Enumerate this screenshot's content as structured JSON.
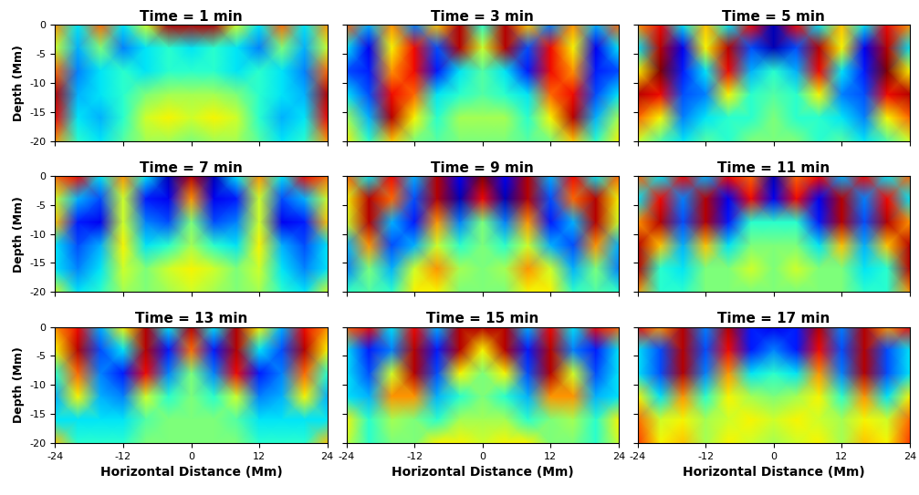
{
  "chart_data": [
    {
      "type": "heatmap",
      "title": "Time = 1 min",
      "y_label": "Depth (Mm)",
      "tick_labels": "y",
      "xlim": [
        -24,
        24
      ],
      "ylim": [
        -20,
        0
      ],
      "xticks": [
        -24,
        -12,
        0,
        12,
        24
      ],
      "yticks": [
        0,
        -5,
        -10,
        -15,
        -20
      ],
      "color": "jet",
      "color_range": [
        -1,
        1
      ],
      "x": [
        -24,
        -20,
        -16,
        -12,
        -8,
        -4,
        0,
        4,
        8,
        12,
        16,
        20,
        24
      ],
      "y": [
        0,
        -4,
        -8,
        -12,
        -16,
        -20
      ],
      "cells": [
        [
          0.5,
          -0.3,
          0.6,
          -0.3,
          0.2,
          0.9,
          0.9,
          0.9,
          0.2,
          -0.3,
          0.6,
          -0.3,
          0.5
        ],
        [
          0.2,
          -0.4,
          0,
          -0.5,
          -0.3,
          -0.2,
          -0.3,
          -0.2,
          -0.3,
          -0.5,
          0,
          -0.4,
          0.2
        ],
        [
          0.6,
          -0.5,
          -0.3,
          -0.2,
          -0.3,
          -0.2,
          -0.2,
          -0.2,
          -0.3,
          -0.2,
          -0.3,
          -0.5,
          0.6
        ],
        [
          0.9,
          -0.4,
          -0.3,
          -0.2,
          0,
          0.1,
          0.1,
          0.1,
          0,
          -0.2,
          -0.3,
          -0.4,
          0.9
        ],
        [
          0.8,
          -0.3,
          -0.4,
          -0.2,
          0.2,
          0.3,
          0.2,
          0.3,
          0.2,
          -0.2,
          -0.4,
          -0.3,
          0.8
        ],
        [
          0.5,
          -0.2,
          -0.3,
          -0.1,
          0.1,
          0.1,
          0,
          0.1,
          0.1,
          -0.1,
          -0.3,
          -0.2,
          0.5
        ]
      ]
    },
    {
      "type": "heatmap",
      "title": "Time = 3 min",
      "tick_labels": false,
      "xlim": [
        -24,
        24
      ],
      "ylim": [
        -20,
        0
      ],
      "xticks": [
        -24,
        -12,
        0,
        12,
        24
      ],
      "yticks": [
        0,
        -5,
        -10,
        -15,
        -20
      ],
      "color": "jet",
      "color_range": [
        -1,
        1
      ],
      "x": [
        -24,
        -20,
        -16,
        -12,
        -8,
        -4,
        0,
        4,
        8,
        12,
        16,
        20,
        24
      ],
      "y": [
        0,
        -4,
        -8,
        -12,
        -16,
        -20
      ],
      "cells": [
        [
          0.6,
          -0.4,
          0.5,
          -0.5,
          0.4,
          0.9,
          -0.2,
          0.9,
          0.4,
          -0.5,
          0.5,
          -0.4,
          0.6
        ],
        [
          -0.3,
          -0.8,
          0.3,
          0.8,
          -0.6,
          0.9,
          0.2,
          0.9,
          -0.6,
          0.8,
          0.3,
          -0.8,
          -0.3
        ],
        [
          -0.6,
          -0.7,
          0.5,
          0.8,
          -0.7,
          -0.3,
          -0.1,
          -0.3,
          -0.7,
          0.8,
          0.5,
          -0.7,
          -0.6
        ],
        [
          -0.3,
          -0.6,
          0.8,
          0.6,
          -0.3,
          -0.2,
          -0.1,
          -0.2,
          -0.3,
          0.6,
          0.8,
          -0.6,
          -0.3
        ],
        [
          0.1,
          -0.4,
          0.9,
          0.3,
          -0.2,
          0.1,
          0.1,
          0.1,
          -0.2,
          0.3,
          0.9,
          -0.4,
          0.1
        ],
        [
          0.3,
          -0.2,
          0.4,
          0,
          -0.1,
          0,
          0,
          0,
          -0.1,
          0,
          0.4,
          -0.2,
          0.3
        ]
      ]
    },
    {
      "type": "heatmap",
      "title": "Time = 5 min",
      "tick_labels": false,
      "xlim": [
        -24,
        24
      ],
      "ylim": [
        -20,
        0
      ],
      "xticks": [
        -24,
        -12,
        0,
        12,
        24
      ],
      "yticks": [
        0,
        -5,
        -10,
        -15,
        -20
      ],
      "color": "jet",
      "color_range": [
        -1,
        1
      ],
      "x": [
        -24,
        -20,
        -16,
        -12,
        -8,
        -4,
        0,
        4,
        8,
        12,
        16,
        20,
        24
      ],
      "y": [
        0,
        -4,
        -8,
        -12,
        -16,
        -20
      ],
      "cells": [
        [
          0.5,
          0.8,
          -0.3,
          0.4,
          -0.3,
          0.8,
          -0.9,
          0.8,
          -0.3,
          0.4,
          -0.3,
          0.8,
          0.5
        ],
        [
          -0.3,
          0.9,
          -0.8,
          0.3,
          0.9,
          -0.6,
          -0.9,
          -0.6,
          0.9,
          0.3,
          -0.8,
          0.9,
          -0.3
        ],
        [
          0.3,
          1,
          -0.7,
          -0.3,
          0.8,
          -0.4,
          -0.2,
          -0.4,
          0.8,
          -0.3,
          -0.7,
          1,
          0.3
        ],
        [
          0.9,
          0.8,
          -0.6,
          -0.5,
          0.3,
          -0.2,
          -0.1,
          -0.2,
          0.3,
          -0.5,
          -0.6,
          0.8,
          0.9
        ],
        [
          0.6,
          0.3,
          -0.5,
          -0.3,
          -0.2,
          -0.2,
          0,
          -0.2,
          -0.2,
          -0.3,
          -0.5,
          0.3,
          0.6
        ],
        [
          0.2,
          -0.1,
          -0.3,
          -0.1,
          -0.2,
          0,
          0,
          0,
          -0.2,
          -0.1,
          -0.3,
          -0.1,
          0.2
        ]
      ]
    },
    {
      "type": "heatmap",
      "title": "Time = 7 min",
      "y_label": "Depth (Mm)",
      "tick_labels": "y",
      "xlim": [
        -24,
        24
      ],
      "ylim": [
        -20,
        0
      ],
      "xticks": [
        -24,
        -12,
        0,
        12,
        24
      ],
      "yticks": [
        0,
        -5,
        -10,
        -15,
        -20
      ],
      "color": "jet",
      "color_range": [
        -1,
        1
      ],
      "x": [
        -24,
        -20,
        -16,
        -12,
        -8,
        -4,
        0,
        4,
        8,
        12,
        16,
        20,
        24
      ],
      "y": [
        0,
        -4,
        -8,
        -12,
        -16,
        -20
      ],
      "cells": [
        [
          0.6,
          0.8,
          -0.3,
          0.5,
          -0.3,
          -0.9,
          0.9,
          -0.9,
          -0.3,
          0.5,
          -0.3,
          0.8,
          0.6
        ],
        [
          0.2,
          -0.4,
          -0.6,
          0.2,
          -0.7,
          -0.8,
          0.5,
          -0.8,
          -0.7,
          0.2,
          -0.6,
          -0.4,
          0.2
        ],
        [
          0.4,
          -0.7,
          -0.8,
          0.2,
          -0.5,
          -0.6,
          0,
          -0.6,
          -0.5,
          0.2,
          -0.8,
          -0.7,
          0.4
        ],
        [
          -0.3,
          -0.6,
          -0.4,
          0.3,
          -0.3,
          -0.2,
          0.1,
          -0.2,
          -0.3,
          0.3,
          -0.4,
          -0.6,
          -0.3
        ],
        [
          -0.3,
          -0.5,
          -0.3,
          0.2,
          0,
          0.2,
          0.3,
          0.2,
          0,
          0.2,
          -0.3,
          -0.5,
          -0.3
        ],
        [
          0.2,
          -0.3,
          -0.2,
          0.1,
          0,
          0.1,
          0.2,
          0.1,
          0,
          0.1,
          -0.2,
          -0.3,
          0.2
        ]
      ]
    },
    {
      "type": "heatmap",
      "title": "Time = 9 min",
      "tick_labels": false,
      "xlim": [
        -24,
        24
      ],
      "ylim": [
        -20,
        0
      ],
      "xticks": [
        -24,
        -12,
        0,
        12,
        24
      ],
      "yticks": [
        0,
        -5,
        -10,
        -15,
        -20
      ],
      "color": "jet",
      "color_range": [
        -1,
        1
      ],
      "x": [
        -24,
        -20,
        -16,
        -12,
        -8,
        -4,
        0,
        4,
        8,
        12,
        16,
        20,
        24
      ],
      "y": [
        0,
        -4,
        -8,
        -12,
        -16,
        -20
      ],
      "cells": [
        [
          0.6,
          -0.3,
          0.8,
          -0.4,
          0.9,
          -0.8,
          1,
          -0.8,
          0.9,
          -0.4,
          0.8,
          -0.3,
          0.6
        ],
        [
          0.3,
          0.9,
          0.6,
          -0.6,
          0.9,
          -0.9,
          0.8,
          -0.9,
          0.9,
          -0.6,
          0.6,
          0.9,
          0.3
        ],
        [
          0.2,
          0.9,
          -0.4,
          -0.7,
          0.5,
          -0.5,
          0,
          -0.5,
          0.5,
          -0.7,
          -0.4,
          0.9,
          0.2
        ],
        [
          -0.4,
          0.5,
          -0.6,
          -0.4,
          0.2,
          -0.2,
          0,
          -0.2,
          0.2,
          -0.4,
          -0.6,
          0.5,
          -0.4
        ],
        [
          -0.5,
          0,
          -0.4,
          0.2,
          0.5,
          0.1,
          0,
          0.1,
          0.5,
          0.2,
          -0.4,
          0,
          -0.5
        ],
        [
          -0.2,
          -0.1,
          -0.2,
          0.3,
          0.3,
          0,
          0,
          0,
          0.3,
          0.3,
          -0.2,
          -0.1,
          -0.2
        ]
      ]
    },
    {
      "type": "heatmap",
      "title": "Time = 11 min",
      "tick_labels": false,
      "xlim": [
        -24,
        24
      ],
      "ylim": [
        -20,
        0
      ],
      "xticks": [
        -24,
        -12,
        0,
        12,
        24
      ],
      "yticks": [
        0,
        -5,
        -10,
        -15,
        -20
      ],
      "color": "jet",
      "color_range": [
        -1,
        1
      ],
      "x": [
        -24,
        -20,
        -16,
        -12,
        -8,
        -4,
        0,
        4,
        8,
        12,
        16,
        20,
        24
      ],
      "y": [
        0,
        -4,
        -8,
        -12,
        -16,
        -20
      ],
      "cells": [
        [
          0.6,
          -0.3,
          0.8,
          -0.4,
          0.8,
          0.6,
          -0.9,
          0.6,
          0.8,
          -0.4,
          0.8,
          -0.3,
          0.6
        ],
        [
          -0.3,
          0.8,
          -0.5,
          0.9,
          -0.8,
          0.8,
          -0.8,
          0.8,
          -0.8,
          0.9,
          -0.5,
          0.8,
          -0.3
        ],
        [
          0.5,
          0.9,
          -0.6,
          0.9,
          -0.7,
          -0.2,
          -0.2,
          -0.2,
          -0.7,
          0.9,
          -0.6,
          0.9,
          0.5
        ],
        [
          0.9,
          0.4,
          -0.4,
          0.4,
          -0.3,
          0,
          0,
          0,
          -0.3,
          0.4,
          -0.4,
          0.4,
          0.9
        ],
        [
          0.9,
          -0.2,
          -0.3,
          0,
          0,
          0.2,
          0,
          0.2,
          0,
          0,
          -0.3,
          -0.2,
          0.9
        ],
        [
          0.5,
          -0.2,
          -0.2,
          0,
          0,
          0,
          0,
          0,
          0,
          0,
          -0.2,
          -0.2,
          0.5
        ]
      ]
    },
    {
      "type": "heatmap",
      "title": "Time = 13 min",
      "y_label": "Depth (Mm)",
      "x_label": "Horizontal Distance (Mm)",
      "xlim": [
        -24,
        24
      ],
      "ylim": [
        -20,
        0
      ],
      "xticks": [
        -24,
        -12,
        0,
        12,
        24
      ],
      "yticks": [
        0,
        -5,
        -10,
        -15,
        -20
      ],
      "color": "jet",
      "color_range": [
        -1,
        1
      ],
      "x": [
        -24,
        -20,
        -16,
        -12,
        -8,
        -4,
        0,
        4,
        8,
        12,
        16,
        20,
        24
      ],
      "y": [
        0,
        -4,
        -8,
        -12,
        -16,
        -20
      ],
      "cells": [
        [
          0.5,
          0.8,
          -0.4,
          0.3,
          0.9,
          -0.3,
          0.9,
          -0.3,
          0.9,
          0.3,
          -0.4,
          0.8,
          0.5
        ],
        [
          0.3,
          0.9,
          -0.6,
          -0.3,
          0.9,
          -0.7,
          0.6,
          -0.7,
          0.9,
          -0.3,
          -0.6,
          0.9,
          0.3
        ],
        [
          -0.2,
          0.6,
          -0.5,
          -0.7,
          0.8,
          -0.5,
          0,
          -0.5,
          0.8,
          -0.7,
          -0.5,
          0.6,
          -0.2
        ],
        [
          -0.4,
          0.3,
          -0.4,
          -0.5,
          0.2,
          -0.2,
          0,
          -0.2,
          0.2,
          -0.5,
          -0.4,
          0.3,
          -0.4
        ],
        [
          -0.3,
          -0.3,
          -0.3,
          -0.3,
          -0.1,
          0,
          0,
          0,
          -0.1,
          -0.3,
          -0.3,
          -0.3,
          -0.3
        ],
        [
          0.4,
          -0.2,
          -0.2,
          -0.2,
          0,
          0,
          0,
          0,
          0,
          -0.2,
          -0.2,
          -0.2,
          0.4
        ]
      ]
    },
    {
      "type": "heatmap",
      "title": "Time = 15 min",
      "x_label": "Horizontal Distance (Mm)",
      "tick_labels": "x",
      "xlim": [
        -24,
        24
      ],
      "ylim": [
        -20,
        0
      ],
      "xticks": [
        -24,
        -12,
        0,
        12,
        24
      ],
      "yticks": [
        0,
        -5,
        -10,
        -15,
        -20
      ],
      "color": "jet",
      "color_range": [
        -1,
        1
      ],
      "x": [
        -24,
        -20,
        -16,
        -12,
        -8,
        -4,
        0,
        4,
        8,
        12,
        16,
        20,
        24
      ],
      "y": [
        0,
        -4,
        -8,
        -12,
        -16,
        -20
      ],
      "cells": [
        [
          0.6,
          0.8,
          -0.3,
          0.8,
          -0.4,
          0.9,
          0.9,
          0.9,
          -0.4,
          0.8,
          -0.3,
          0.8,
          0.6
        ],
        [
          -0.3,
          -0.7,
          -0.5,
          0.9,
          -0.7,
          0.9,
          0.3,
          0.9,
          -0.7,
          0.9,
          -0.5,
          -0.7,
          -0.3
        ],
        [
          -0.3,
          -0.6,
          0.2,
          0.9,
          -0.6,
          0.3,
          0,
          0.3,
          -0.6,
          0.9,
          0.2,
          -0.6,
          -0.3
        ],
        [
          -0.3,
          -0.4,
          0.5,
          0.5,
          -0.4,
          -0.2,
          0,
          -0.2,
          -0.4,
          0.5,
          0.5,
          -0.4,
          -0.3
        ],
        [
          0.3,
          -0.2,
          0.1,
          0,
          -0.2,
          0.1,
          0.1,
          0.1,
          -0.2,
          0,
          0.1,
          -0.2,
          0.3
        ],
        [
          0.2,
          -0.2,
          0,
          0,
          0.3,
          0.3,
          0.2,
          0.3,
          0.3,
          0,
          0,
          -0.2,
          0.2
        ]
      ]
    },
    {
      "type": "heatmap",
      "title": "Time = 17 min",
      "x_label": "Horizontal Distance (Mm)",
      "tick_labels": "x",
      "xlim": [
        -24,
        24
      ],
      "ylim": [
        -20,
        0
      ],
      "xticks": [
        -24,
        -12,
        0,
        12,
        24
      ],
      "yticks": [
        0,
        -5,
        -10,
        -15,
        -20
      ],
      "color": "jet",
      "color_range": [
        -1,
        1
      ],
      "x": [
        -24,
        -20,
        -16,
        -12,
        -8,
        -4,
        0,
        4,
        8,
        12,
        16,
        20,
        24
      ],
      "y": [
        0,
        -4,
        -8,
        -12,
        -16,
        -20
      ],
      "cells": [
        [
          0.8,
          0.5,
          0.9,
          -0.5,
          0.9,
          -0.7,
          -0.8,
          -0.7,
          0.9,
          -0.5,
          0.9,
          0.5,
          0.8
        ],
        [
          -0.3,
          -0.6,
          0.9,
          -0.6,
          0.8,
          -0.7,
          -0.5,
          -0.7,
          0.8,
          -0.6,
          0.9,
          -0.6,
          -0.3
        ],
        [
          -0.3,
          -0.6,
          0.9,
          -0.5,
          0.5,
          -0.3,
          -0.2,
          -0.3,
          0.5,
          -0.5,
          0.9,
          -0.6,
          -0.3
        ],
        [
          0.3,
          -0.3,
          0.5,
          -0.2,
          0.3,
          0.1,
          0,
          0.1,
          0.3,
          -0.2,
          0.5,
          -0.3,
          0.3
        ],
        [
          0.6,
          0.2,
          0.3,
          0.1,
          0.2,
          0.3,
          0.2,
          0.3,
          0.2,
          0.1,
          0.3,
          0.2,
          0.6
        ],
        [
          0.7,
          0.3,
          0.4,
          0.1,
          0.3,
          0.2,
          0.1,
          0.2,
          0.3,
          0.1,
          0.4,
          0.3,
          0.7
        ]
      ]
    }
  ]
}
